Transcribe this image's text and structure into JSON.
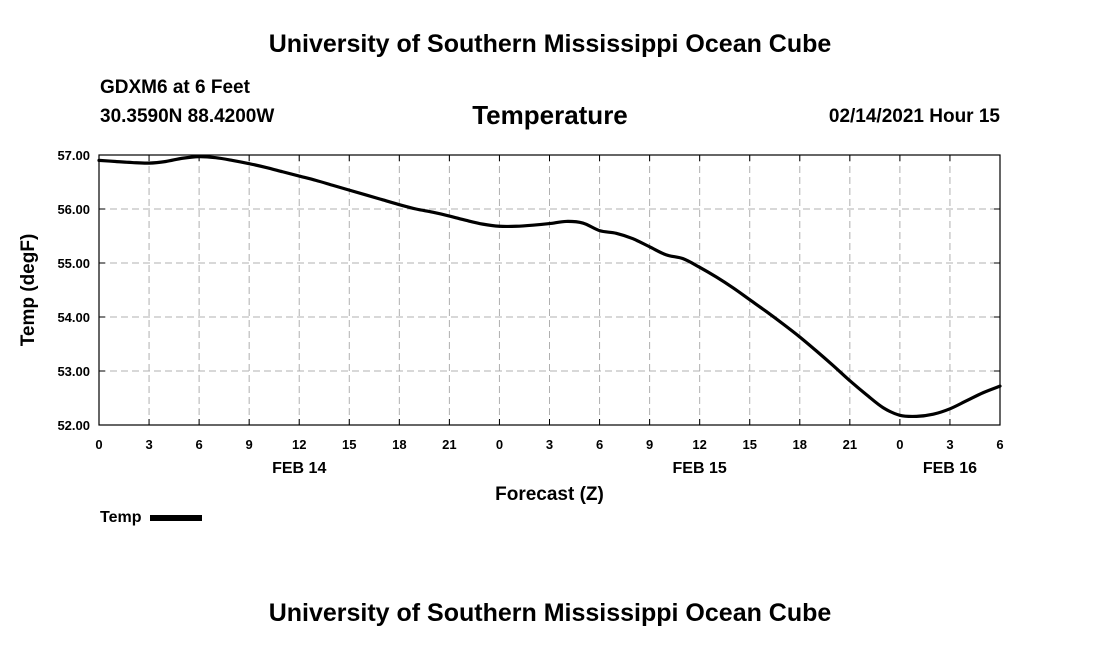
{
  "header": {
    "title": "University of Southern Mississippi Ocean Cube",
    "station": "GDXM6 at 6 Feet",
    "coordinates": "30.3590N 88.4200W",
    "datetime": "02/14/2021 Hour 15"
  },
  "footer": {
    "title": "University of Southern Mississippi Ocean Cube"
  },
  "chart_data": {
    "type": "line",
    "title": "Temperature",
    "xlabel": "Forecast (Z)",
    "ylabel": "Temp (degF)",
    "ylim": [
      52.0,
      57.0
    ],
    "xlim": [
      0,
      54
    ],
    "grid": true,
    "y_ticks": [
      "52.00",
      "53.00",
      "54.00",
      "55.00",
      "56.00",
      "57.00"
    ],
    "y_tick_values": [
      52,
      53,
      54,
      55,
      56,
      57
    ],
    "x_ticks": [
      "0",
      "3",
      "6",
      "9",
      "12",
      "15",
      "18",
      "21",
      "0",
      "3",
      "6",
      "9",
      "12",
      "15",
      "18",
      "21",
      "0",
      "3",
      "6"
    ],
    "x_tick_values": [
      0,
      3,
      6,
      9,
      12,
      15,
      18,
      21,
      24,
      27,
      30,
      33,
      36,
      39,
      42,
      45,
      48,
      51,
      54
    ],
    "date_labels": [
      {
        "label": "FEB 14",
        "x": 12
      },
      {
        "label": "FEB 15",
        "x": 36
      },
      {
        "label": "FEB 16",
        "x": 51
      }
    ],
    "series": [
      {
        "name": "Temp",
        "color": "#000000",
        "x": [
          0,
          1,
          2,
          3,
          4,
          5,
          6,
          7,
          8,
          9,
          10,
          11,
          12,
          13,
          14,
          15,
          16,
          17,
          18,
          19,
          20,
          21,
          22,
          23,
          24,
          25,
          26,
          27,
          28,
          29,
          30,
          31,
          32,
          33,
          34,
          35,
          36,
          37,
          38,
          39,
          40,
          41,
          42,
          43,
          44,
          45,
          46,
          47,
          48,
          49,
          50,
          51,
          52,
          53,
          54
        ],
        "values": [
          56.9,
          56.88,
          56.86,
          56.85,
          56.88,
          56.94,
          56.97,
          56.95,
          56.9,
          56.84,
          56.77,
          56.69,
          56.61,
          56.53,
          56.44,
          56.35,
          56.26,
          56.17,
          56.08,
          56.0,
          55.94,
          55.87,
          55.79,
          55.72,
          55.68,
          55.68,
          55.7,
          55.73,
          55.77,
          55.74,
          55.6,
          55.55,
          55.45,
          55.3,
          55.15,
          55.08,
          54.92,
          54.74,
          54.54,
          54.32,
          54.1,
          53.87,
          53.63,
          53.37,
          53.1,
          52.82,
          52.56,
          52.32,
          52.18,
          52.16,
          52.2,
          52.3,
          52.45,
          52.6,
          52.72
        ]
      }
    ],
    "legend": {
      "label": "Temp",
      "placement": "bottom-left"
    }
  }
}
